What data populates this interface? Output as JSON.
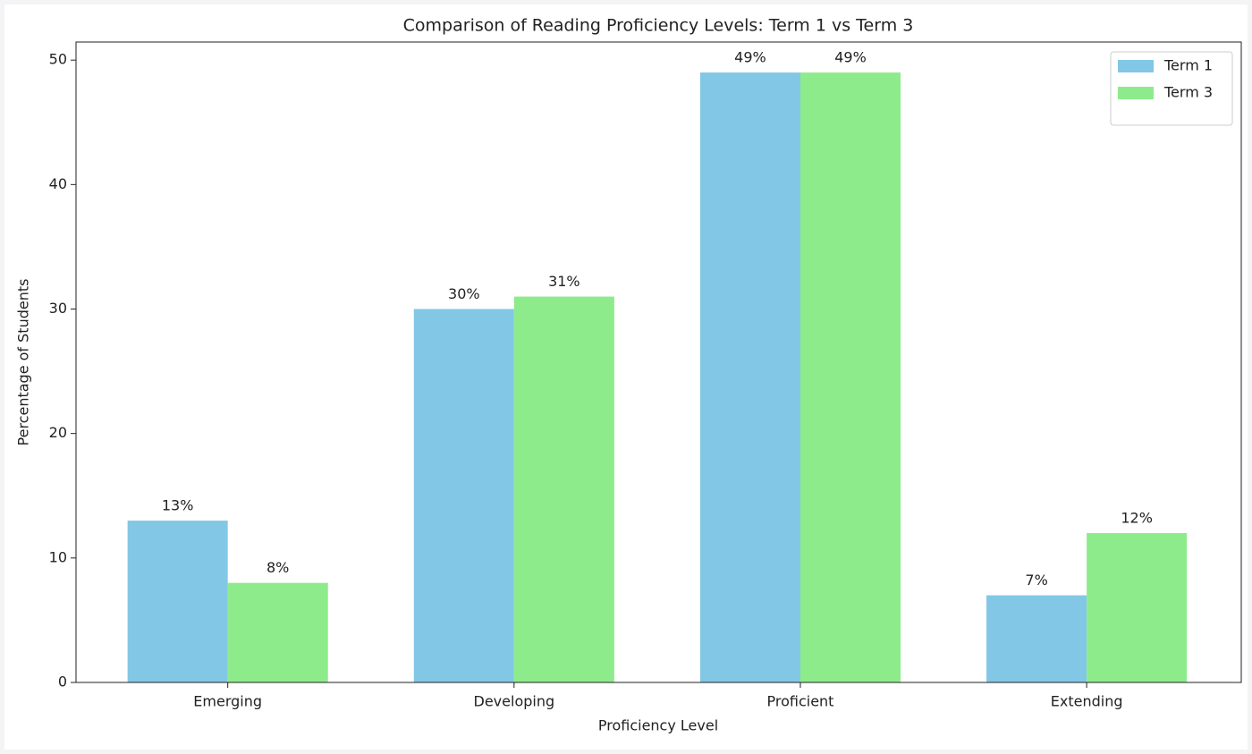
{
  "chart_data": {
    "type": "bar",
    "title": "Comparison of Reading Proficiency Levels: Term 1 vs Term 3",
    "x_label": "Proficiency Level",
    "y_label": "Percentage of Students",
    "categories": [
      "Emerging",
      "Developing",
      "Proficient",
      "Extending"
    ],
    "series": [
      {
        "name": "Term 1",
        "color": "#82c7e5",
        "values": [
          13,
          30,
          49,
          7
        ],
        "value_labels": [
          "13%",
          "30%",
          "49%",
          "7%"
        ]
      },
      {
        "name": "Term 3",
        "color": "#8deb8b",
        "values": [
          8,
          31,
          49,
          12
        ],
        "value_labels": [
          "8%",
          "31%",
          "49%",
          "12%"
        ]
      }
    ],
    "ylim": [
      0,
      51.45
    ],
    "yticks": [
      0,
      10,
      20,
      30,
      40,
      50
    ],
    "grid": false,
    "legend": "upper right"
  }
}
